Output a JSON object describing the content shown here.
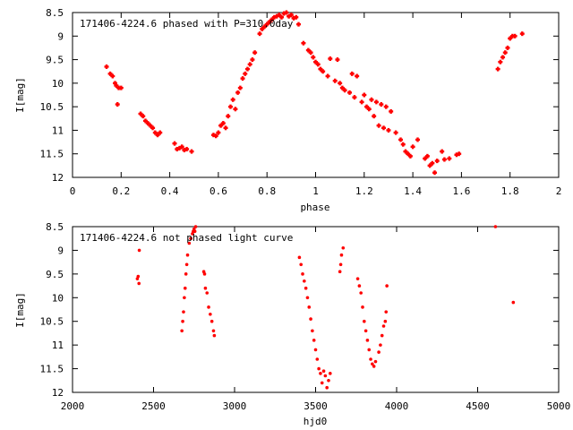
{
  "chart_data": [
    {
      "type": "scatter",
      "title": "171406-4224.6 phased with P=310.0day",
      "xlabel": "phase",
      "ylabel": "I[mag]",
      "xlim": [
        0,
        2
      ],
      "ylim": [
        12,
        8.5
      ],
      "y_inverted": true,
      "xticks": [
        "0",
        "0.2",
        "0.4",
        "0.6",
        "0.8",
        "1",
        "1.2",
        "1.4",
        "1.6",
        "1.8",
        "2"
      ],
      "yticks": [
        "8.5",
        "9",
        "9.5",
        "10",
        "10.5",
        "11",
        "11.5",
        "12"
      ],
      "marker_color": "#ff0000",
      "series": [
        {
          "x": [
            0.14,
            0.155,
            0.165,
            0.175,
            0.18,
            0.19,
            0.2,
            0.185,
            0.28,
            0.29,
            0.3,
            0.31,
            0.32,
            0.33,
            0.34,
            0.35,
            0.36,
            0.42,
            0.43,
            0.44,
            0.45,
            0.46,
            0.47,
            0.49,
            0.58,
            0.59,
            0.6,
            0.61,
            0.62,
            0.63,
            0.64,
            0.65,
            0.66,
            0.67,
            0.68,
            0.69,
            0.7,
            0.71,
            0.72,
            0.73,
            0.74,
            0.75,
            0.77,
            0.78,
            0.79,
            0.8,
            0.81,
            0.82,
            0.83,
            0.84,
            0.85,
            0.86,
            0.87,
            0.88,
            0.89,
            0.9,
            0.91,
            0.92,
            0.93,
            0.95,
            0.97,
            0.98,
            0.99,
            1.0,
            1.01,
            1.02,
            1.03,
            1.05,
            1.06,
            1.08,
            1.09,
            1.1,
            1.11,
            1.12,
            1.14,
            1.15,
            1.16,
            1.17,
            1.19,
            1.2,
            1.21,
            1.22,
            1.23,
            1.24,
            1.25,
            1.26,
            1.27,
            1.28,
            1.29,
            1.3,
            1.31,
            1.33,
            1.35,
            1.36,
            1.37,
            1.38,
            1.39,
            1.4,
            1.42,
            1.45,
            1.46,
            1.47,
            1.48,
            1.49,
            1.5,
            1.52,
            1.53,
            1.55,
            1.58,
            1.59,
            1.75,
            1.76,
            1.77,
            1.78,
            1.79,
            1.8,
            1.81,
            1.82,
            1.85
          ],
          "y": [
            9.65,
            9.8,
            9.85,
            10.0,
            10.05,
            10.1,
            10.1,
            10.45,
            10.65,
            10.7,
            10.8,
            10.85,
            10.9,
            10.95,
            11.05,
            11.1,
            11.05,
            11.28,
            11.4,
            11.38,
            11.35,
            11.42,
            11.4,
            11.45,
            11.1,
            11.12,
            11.05,
            10.9,
            10.85,
            10.95,
            10.7,
            10.5,
            10.35,
            10.55,
            10.2,
            10.1,
            9.9,
            9.8,
            9.7,
            9.6,
            9.5,
            9.35,
            8.95,
            8.85,
            8.8,
            8.75,
            8.7,
            8.65,
            8.6,
            8.58,
            8.55,
            8.6,
            8.52,
            8.5,
            8.58,
            8.55,
            8.62,
            8.6,
            8.75,
            9.15,
            9.3,
            9.35,
            9.45,
            9.55,
            9.6,
            9.7,
            9.75,
            9.85,
            9.48,
            9.95,
            9.5,
            10.0,
            10.1,
            10.15,
            10.2,
            9.8,
            10.3,
            9.85,
            10.4,
            10.25,
            10.5,
            10.55,
            10.35,
            10.7,
            10.4,
            10.9,
            10.45,
            10.95,
            10.5,
            11.0,
            10.6,
            11.05,
            11.2,
            11.3,
            11.45,
            11.5,
            11.55,
            11.35,
            11.2,
            11.6,
            11.55,
            11.75,
            11.7,
            11.9,
            11.65,
            11.45,
            11.62,
            11.6,
            11.52,
            11.5,
            9.7,
            9.55,
            9.45,
            9.35,
            9.25,
            9.05,
            9.0,
            9.0,
            8.95
          ]
        }
      ]
    },
    {
      "type": "scatter",
      "title": "171406-4224.6 not phased light curve",
      "xlabel": "hjd0",
      "ylabel": "I[mag]",
      "xlim": [
        2000,
        5000
      ],
      "ylim": [
        12,
        8.5
      ],
      "y_inverted": true,
      "xticks": [
        "2000",
        "2500",
        "3000",
        "3500",
        "4000",
        "4500",
        "5000"
      ],
      "yticks": [
        "8.5",
        "9",
        "9.5",
        "10",
        "10.5",
        "11",
        "11.5",
        "12"
      ],
      "marker_color": "#ff0000",
      "series": [
        {
          "x": [
            2400,
            2405,
            2410,
            2412,
            2675,
            2680,
            2685,
            2690,
            2695,
            2700,
            2705,
            2710,
            2720,
            2730,
            2740,
            2745,
            2750,
            2755,
            2760,
            2810,
            2815,
            2820,
            2830,
            2840,
            2850,
            2860,
            2870,
            2875,
            3400,
            3410,
            3420,
            3430,
            3440,
            3450,
            3460,
            3470,
            3480,
            3490,
            3500,
            3510,
            3520,
            3530,
            3540,
            3550,
            3560,
            3570,
            3580,
            3590,
            3650,
            3655,
            3660,
            3670,
            3760,
            3770,
            3780,
            3790,
            3800,
            3810,
            3820,
            3830,
            3840,
            3850,
            3860,
            3870,
            3890,
            3900,
            3910,
            3920,
            3930,
            3935,
            3940,
            4610,
            4720
          ],
          "y": [
            9.6,
            9.55,
            9.7,
            9.0,
            10.7,
            10.5,
            10.3,
            10.0,
            9.8,
            9.5,
            9.3,
            9.1,
            8.85,
            8.75,
            8.65,
            8.6,
            8.55,
            8.6,
            8.5,
            9.45,
            9.5,
            9.8,
            9.9,
            10.2,
            10.35,
            10.5,
            10.7,
            10.8,
            9.15,
            9.3,
            9.5,
            9.65,
            9.8,
            10.0,
            10.2,
            10.45,
            10.7,
            10.9,
            11.1,
            11.3,
            11.5,
            11.6,
            11.8,
            11.55,
            11.65,
            11.9,
            11.75,
            11.6,
            9.45,
            9.3,
            9.1,
            8.95,
            9.6,
            9.75,
            9.9,
            10.2,
            10.5,
            10.7,
            10.9,
            11.1,
            11.3,
            11.4,
            11.45,
            11.35,
            11.15,
            11.0,
            10.8,
            10.6,
            10.5,
            10.3,
            9.75,
            8.5,
            10.1
          ]
        }
      ]
    }
  ]
}
